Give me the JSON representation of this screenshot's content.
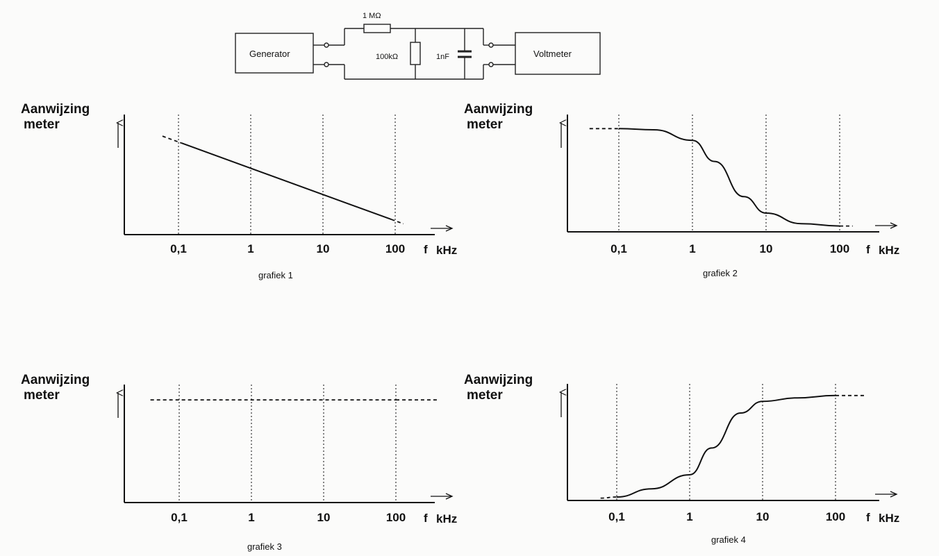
{
  "circuit": {
    "generator_label": "Generator",
    "voltmeter_label": "Voltmeter",
    "r_series_label": "1 MΩ",
    "r_shunt_label": "100kΩ",
    "c_label": "1nF"
  },
  "chart_data": [
    {
      "type": "line",
      "caption": "grafiek 1",
      "ylabel": "Aanwijzing meter",
      "xlabel": "f kHz",
      "xscale": "log",
      "xticks": [
        "0,1",
        "1",
        "10",
        "100"
      ],
      "x": [
        0.06,
        130
      ],
      "y": [
        0.82,
        0.09
      ],
      "grid": "dotted vertical",
      "trend": "decreasing straight line"
    },
    {
      "type": "line",
      "caption": "grafiek 2",
      "ylabel": "Aanwijzing meter",
      "xlabel": "f kHz",
      "xscale": "log",
      "xticks": [
        "0,1",
        "1",
        "10",
        "100"
      ],
      "x": [
        0.04,
        0.1,
        0.3,
        1,
        2,
        5,
        10,
        30,
        100,
        150
      ],
      "y": [
        0.88,
        0.88,
        0.87,
        0.78,
        0.6,
        0.3,
        0.16,
        0.07,
        0.05,
        0.05
      ],
      "grid": "dotted vertical",
      "trend": "low-pass: high then falls after 1 kHz"
    },
    {
      "type": "line",
      "caption": "grafiek 3",
      "ylabel": "Aanwijzing meter",
      "xlabel": "f kHz",
      "xscale": "log",
      "xticks": [
        "0,1",
        "1",
        "10",
        "100"
      ],
      "x": [
        0.04,
        100,
        400
      ],
      "y": [
        0.87,
        0.87,
        0.87
      ],
      "grid": "dotted vertical",
      "trend": "constant"
    },
    {
      "type": "line",
      "caption": "grafiek 4",
      "ylabel": "Aanwijzing meter",
      "xlabel": "f kHz",
      "xscale": "log",
      "xticks": [
        "0,1",
        "1",
        "10",
        "100"
      ],
      "x": [
        0.06,
        0.1,
        0.3,
        1,
        2,
        5,
        10,
        30,
        100,
        260
      ],
      "y": [
        0.02,
        0.03,
        0.1,
        0.22,
        0.45,
        0.75,
        0.85,
        0.88,
        0.9,
        0.9
      ],
      "grid": "dotted vertical",
      "trend": "high-pass: low then rises after 1 kHz"
    }
  ]
}
